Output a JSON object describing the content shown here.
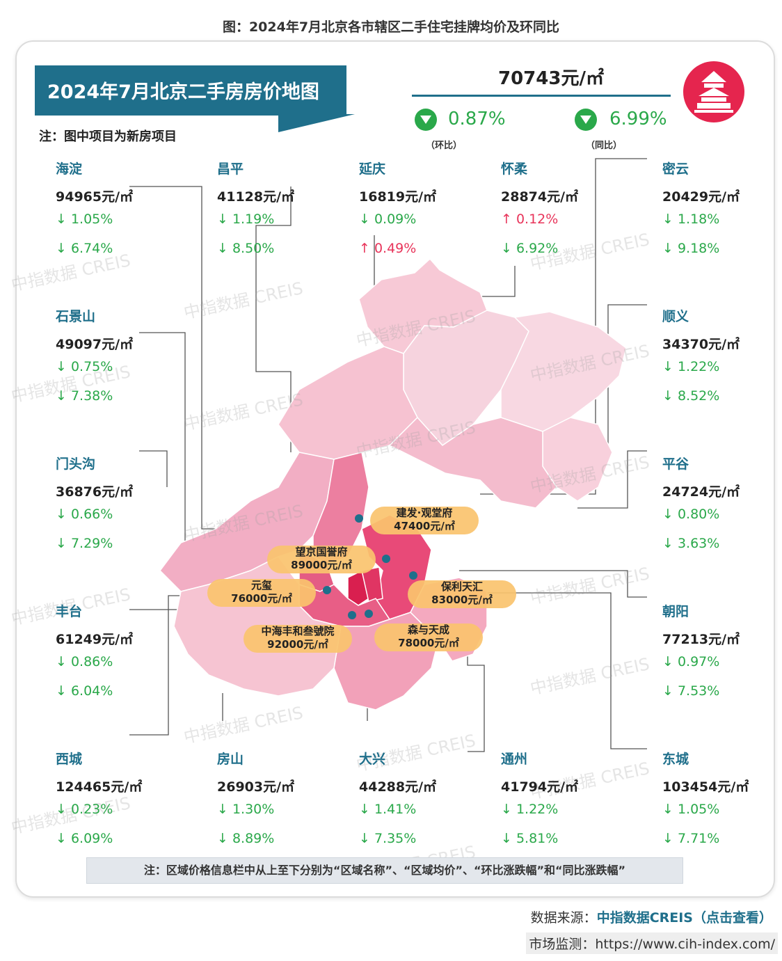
{
  "figure_title": "图：2024年7月北京各市辖区二手住宅挂牌均价及环同比",
  "banner_title": "2024年7月北京二手房房价地图",
  "note_top": "注：图中项目为新房项目",
  "summary": {
    "price": "70743元/㎡",
    "mom_value": "0.87%",
    "mom_label": "（环比）",
    "yoy_value": "6.99%",
    "yoy_label": "（同比）"
  },
  "colors": {
    "teal": "#1f6f8b",
    "down": "#2aa84a",
    "up": "#e8345a",
    "logo": "#e5254e"
  },
  "icons": {
    "summary_trend": "down-triangle-icon",
    "logo": "temple-of-heaven-icon"
  },
  "chart_data": {
    "type": "map",
    "unit": "元/㎡",
    "districts": [
      {
        "name": "海淀",
        "price": "94965元/㎡",
        "mom": "1.05%",
        "mom_dir": "down",
        "yoy": "6.74%",
        "yoy_dir": "down",
        "value": 94965
      },
      {
        "name": "昌平",
        "price": "41128元/㎡",
        "mom": "1.19%",
        "mom_dir": "down",
        "yoy": "8.50%",
        "yoy_dir": "down",
        "value": 41128
      },
      {
        "name": "延庆",
        "price": "16819元/㎡",
        "mom": "0.09%",
        "mom_dir": "down",
        "yoy": "0.49%",
        "yoy_dir": "up",
        "value": 16819
      },
      {
        "name": "怀柔",
        "price": "28874元/㎡",
        "mom": "0.12%",
        "mom_dir": "up",
        "yoy": "6.92%",
        "yoy_dir": "down",
        "value": 28874
      },
      {
        "name": "密云",
        "price": "20429元/㎡",
        "mom": "1.18%",
        "mom_dir": "down",
        "yoy": "9.18%",
        "yoy_dir": "down",
        "value": 20429
      },
      {
        "name": "石景山",
        "price": "49097元/㎡",
        "mom": "0.75%",
        "mom_dir": "down",
        "yoy": "7.38%",
        "yoy_dir": "down",
        "value": 49097
      },
      {
        "name": "顺义",
        "price": "34370元/㎡",
        "mom": "1.22%",
        "mom_dir": "down",
        "yoy": "8.52%",
        "yoy_dir": "down",
        "value": 34370
      },
      {
        "name": "门头沟",
        "price": "36876元/㎡",
        "mom": "0.66%",
        "mom_dir": "down",
        "yoy": "7.29%",
        "yoy_dir": "down",
        "value": 36876
      },
      {
        "name": "平谷",
        "price": "24724元/㎡",
        "mom": "0.80%",
        "mom_dir": "down",
        "yoy": "3.63%",
        "yoy_dir": "down",
        "value": 24724
      },
      {
        "name": "丰台",
        "price": "61249元/㎡",
        "mom": "0.86%",
        "mom_dir": "down",
        "yoy": "6.04%",
        "yoy_dir": "down",
        "value": 61249
      },
      {
        "name": "朝阳",
        "price": "77213元/㎡",
        "mom": "0.97%",
        "mom_dir": "down",
        "yoy": "7.53%",
        "yoy_dir": "down",
        "value": 77213
      },
      {
        "name": "西城",
        "price": "124465元/㎡",
        "mom": "0.23%",
        "mom_dir": "down",
        "yoy": "6.09%",
        "yoy_dir": "down",
        "value": 124465
      },
      {
        "name": "房山",
        "price": "26903元/㎡",
        "mom": "1.30%",
        "mom_dir": "down",
        "yoy": "8.89%",
        "yoy_dir": "down",
        "value": 26903
      },
      {
        "name": "大兴",
        "price": "44288元/㎡",
        "mom": "1.41%",
        "mom_dir": "down",
        "yoy": "7.35%",
        "yoy_dir": "down",
        "value": 44288
      },
      {
        "name": "通州",
        "price": "41794元/㎡",
        "mom": "1.22%",
        "mom_dir": "down",
        "yoy": "5.81%",
        "yoy_dir": "down",
        "value": 41794
      },
      {
        "name": "东城",
        "price": "103454元/㎡",
        "mom": "1.05%",
        "mom_dir": "down",
        "yoy": "7.71%",
        "yoy_dir": "down",
        "value": 103454
      }
    ],
    "projects": [
      {
        "name": "建发·观堂府",
        "price": "47400元/㎡"
      },
      {
        "name": "望京国誉府",
        "price": "89000元/㎡"
      },
      {
        "name": "元玺",
        "price": "76000元/㎡"
      },
      {
        "name": "保利天汇",
        "price": "83000元/㎡"
      },
      {
        "name": "中海丰和叁號院",
        "price": "92000元/㎡"
      },
      {
        "name": "森与天成",
        "price": "78000元/㎡"
      }
    ]
  },
  "watermark": "中指数据 CREIS",
  "bottom_note": "注：区域价格信息栏中从上至下分别为“区域名称”、“区域均价”、“环比涨跌幅”和“同比涨跌幅”",
  "source_label": "数据来源：",
  "source_name": "中指数据CREIS（点击查看）",
  "monitor_label": "市场监测：",
  "monitor_url": "https://www.cih-index.com/"
}
